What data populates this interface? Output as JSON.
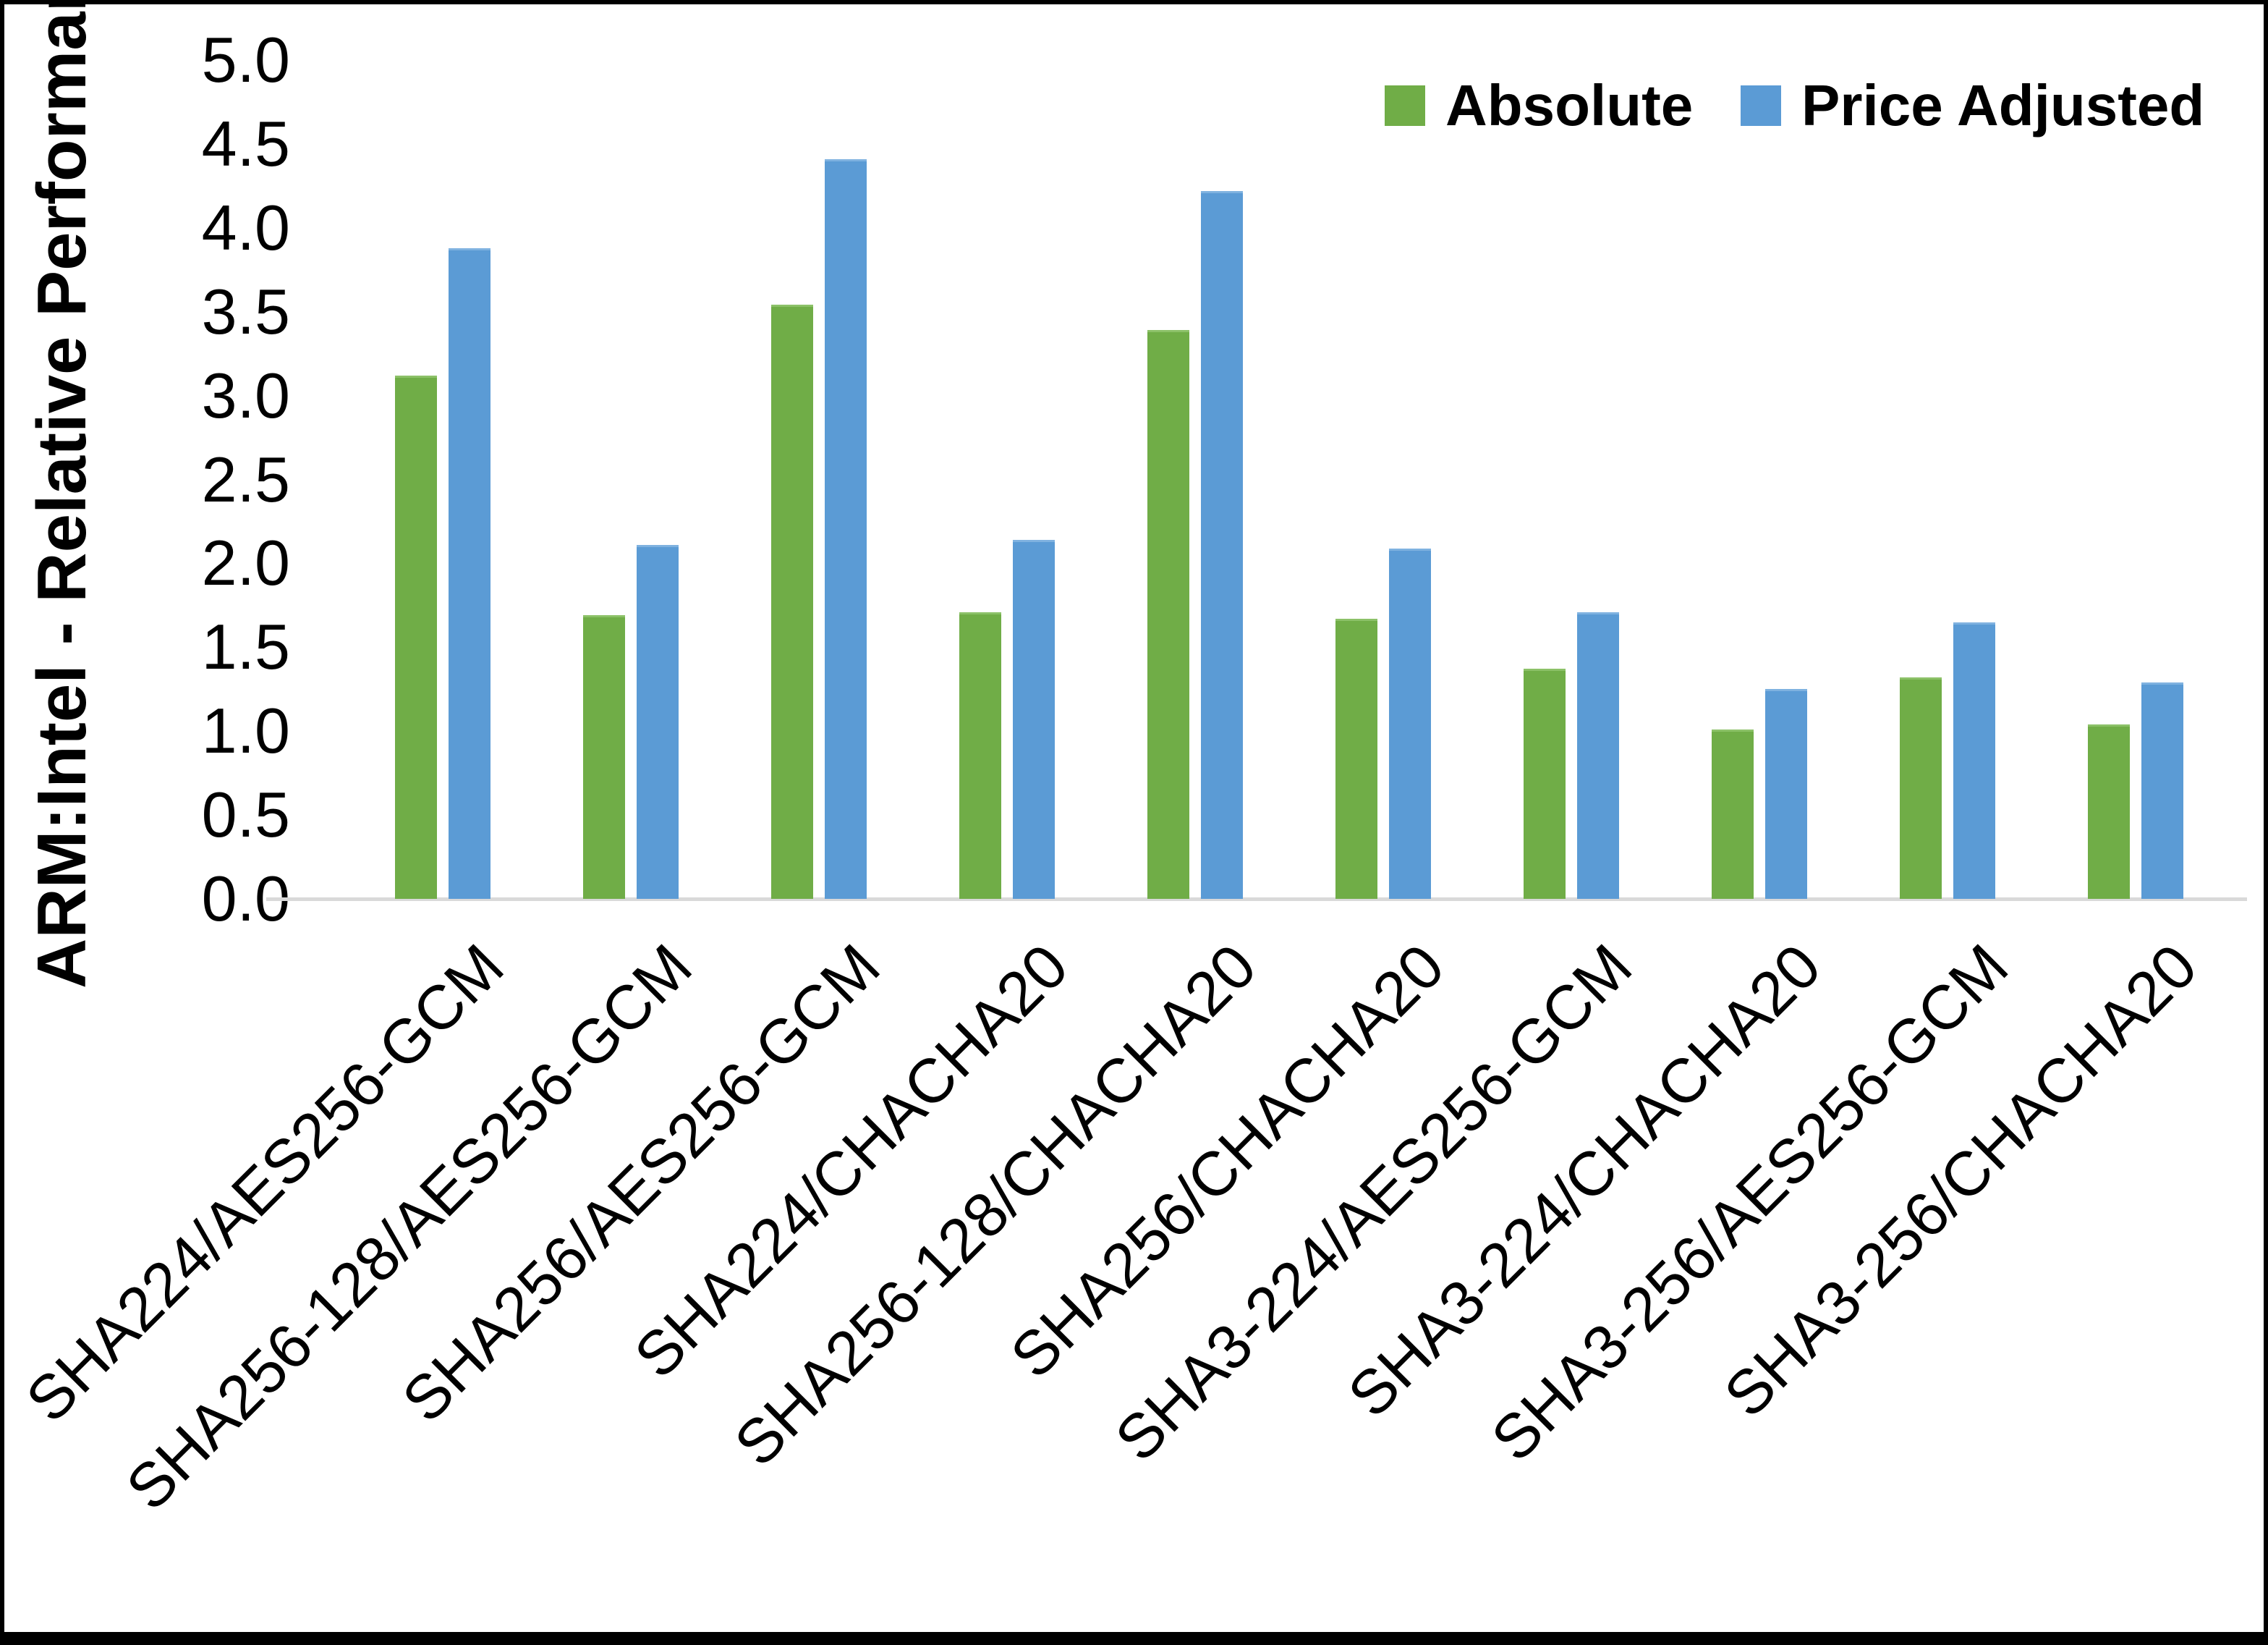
{
  "figure": {
    "y_axis_title": "ARM:Intel - Relative Performance"
  },
  "legend": {
    "items": [
      {
        "label": "Absolute",
        "color": "#70AD47"
      },
      {
        "label": "Price Adjusted",
        "color": "#5B9BD5"
      }
    ]
  },
  "chart_data": {
    "type": "bar",
    "title": "",
    "xlabel": "",
    "ylabel": "ARM:Intel - Relative Performance",
    "ylim": [
      0,
      5
    ],
    "ytick_step": 0.5,
    "yticks": [
      "0.0",
      "0.5",
      "1.0",
      "1.5",
      "2.0",
      "2.5",
      "3.0",
      "3.5",
      "4.0",
      "4.5",
      "5.0"
    ],
    "grid": false,
    "legend_position": "top-right",
    "categories": [
      "SHA224/AES256-GCM",
      "SHA256-128/AES256-GCM",
      "SHA256/AES256-GCM",
      "SHA224/CHACHA20",
      "SHA256-128/CHACHA20",
      "SHA256/CHACHA20",
      "SHA3-224/AES256-GCM",
      "SHA3-224/CHACHA20",
      "SHA3-256/AES256-GCM",
      "SHA3-256/CHACHA20"
    ],
    "series": [
      {
        "name": "Absolute",
        "color": "#70AD47",
        "edge_color": "#8cc168",
        "values": [
          3.12,
          1.69,
          3.54,
          1.71,
          3.39,
          1.67,
          1.37,
          1.01,
          1.32,
          1.04
        ]
      },
      {
        "name": "Price Adjusted",
        "color": "#5B9BD5",
        "edge_color": "#7fb2e0",
        "values": [
          3.88,
          2.11,
          4.41,
          2.14,
          4.22,
          2.09,
          1.71,
          1.25,
          1.65,
          1.29
        ]
      }
    ]
  },
  "colors": {
    "axis_line": "#D9D9D9",
    "background": "#FFFFFF",
    "border": "#000000",
    "text": "#000000"
  }
}
